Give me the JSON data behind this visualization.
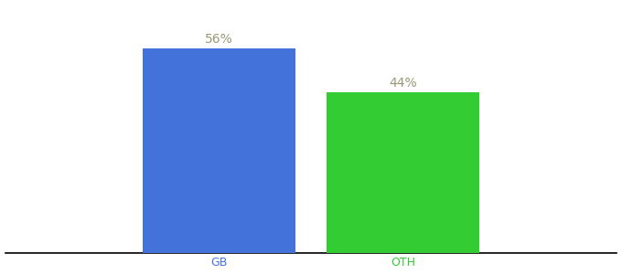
{
  "categories": [
    "GB",
    "OTH"
  ],
  "values": [
    56,
    44
  ],
  "bar_colors": [
    "#4472db",
    "#33cc33"
  ],
  "label_color": "#999977",
  "tick_color_gb": "#4472db",
  "tick_color_oth": "#33cc33",
  "background_color": "#ffffff",
  "ylim": [
    0,
    68
  ],
  "bar_width": 0.25,
  "x_positions": [
    0.35,
    0.65
  ],
  "xlim": [
    0.0,
    1.0
  ],
  "label_fontsize": 10,
  "tick_fontsize": 9
}
